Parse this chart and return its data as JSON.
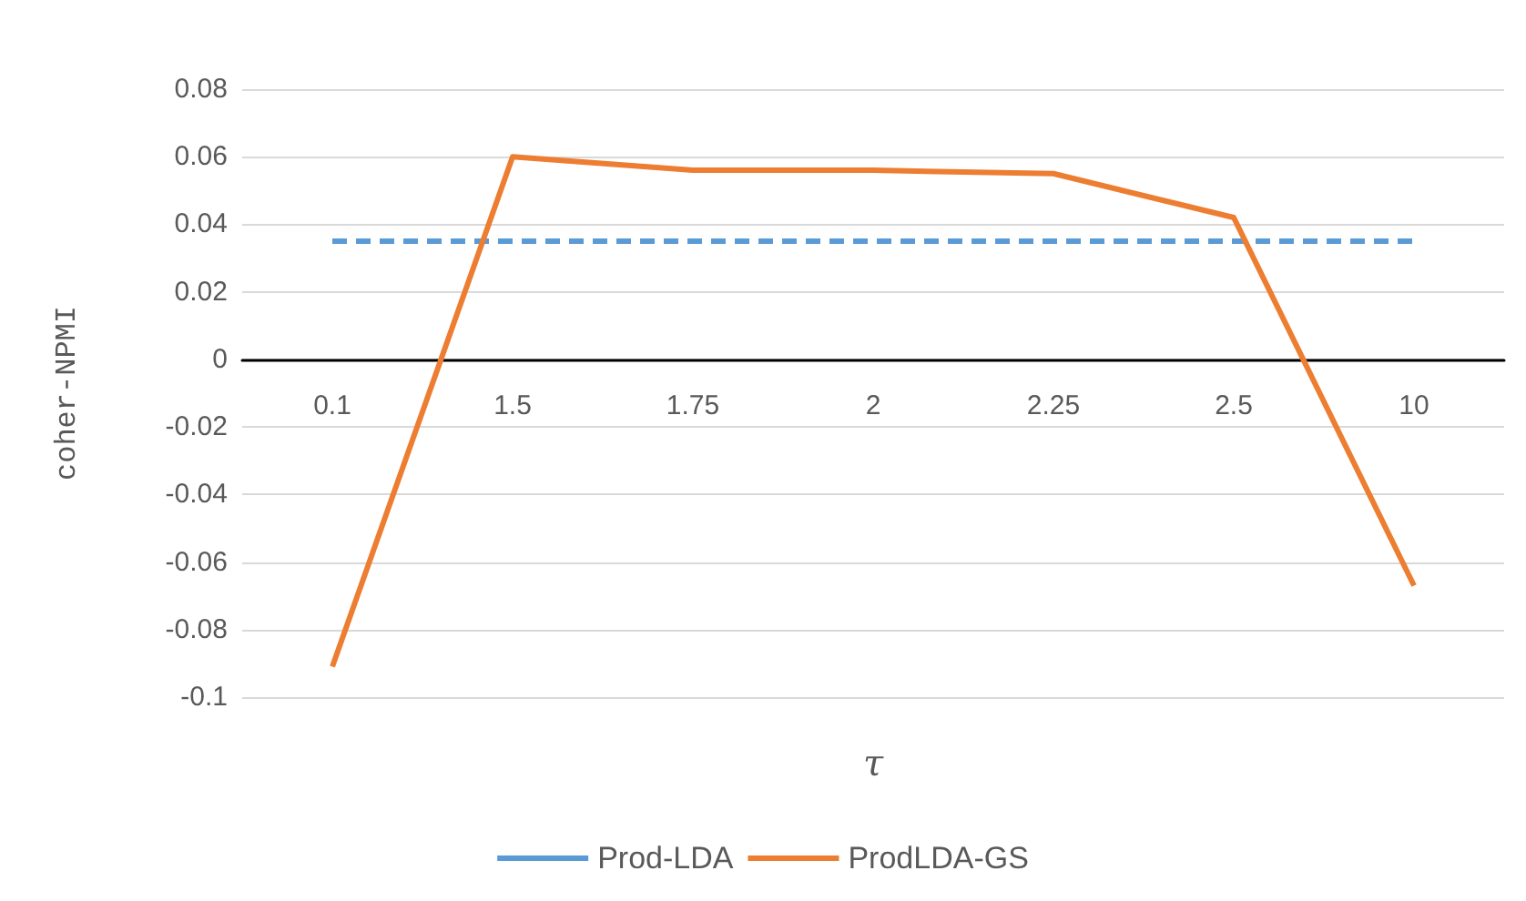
{
  "chart_data": {
    "type": "line",
    "xlabel": "τ",
    "ylabel": "coher-NPMI",
    "categories": [
      "0.1",
      "1.5",
      "1.75",
      "2",
      "2.25",
      "2.5",
      "10"
    ],
    "series": [
      {
        "name": "Prod-LDA",
        "color": "#5b9bd5",
        "line_style": "dashed",
        "values": [
          0.035,
          0.035,
          0.035,
          0.035,
          0.035,
          0.035,
          0.035
        ]
      },
      {
        "name": "ProdLDA-GS",
        "color": "#ed7d31",
        "line_style": "solid",
        "values": [
          -0.091,
          0.06,
          0.056,
          0.056,
          0.055,
          0.042,
          -0.067
        ]
      }
    ],
    "ylim": [
      -0.1,
      0.08
    ],
    "yticks": [
      -0.1,
      -0.08,
      -0.06,
      -0.04,
      -0.02,
      0,
      0.02,
      0.04,
      0.06,
      0.08
    ],
    "grid": "y",
    "legend": "bottom",
    "marker": "none"
  }
}
